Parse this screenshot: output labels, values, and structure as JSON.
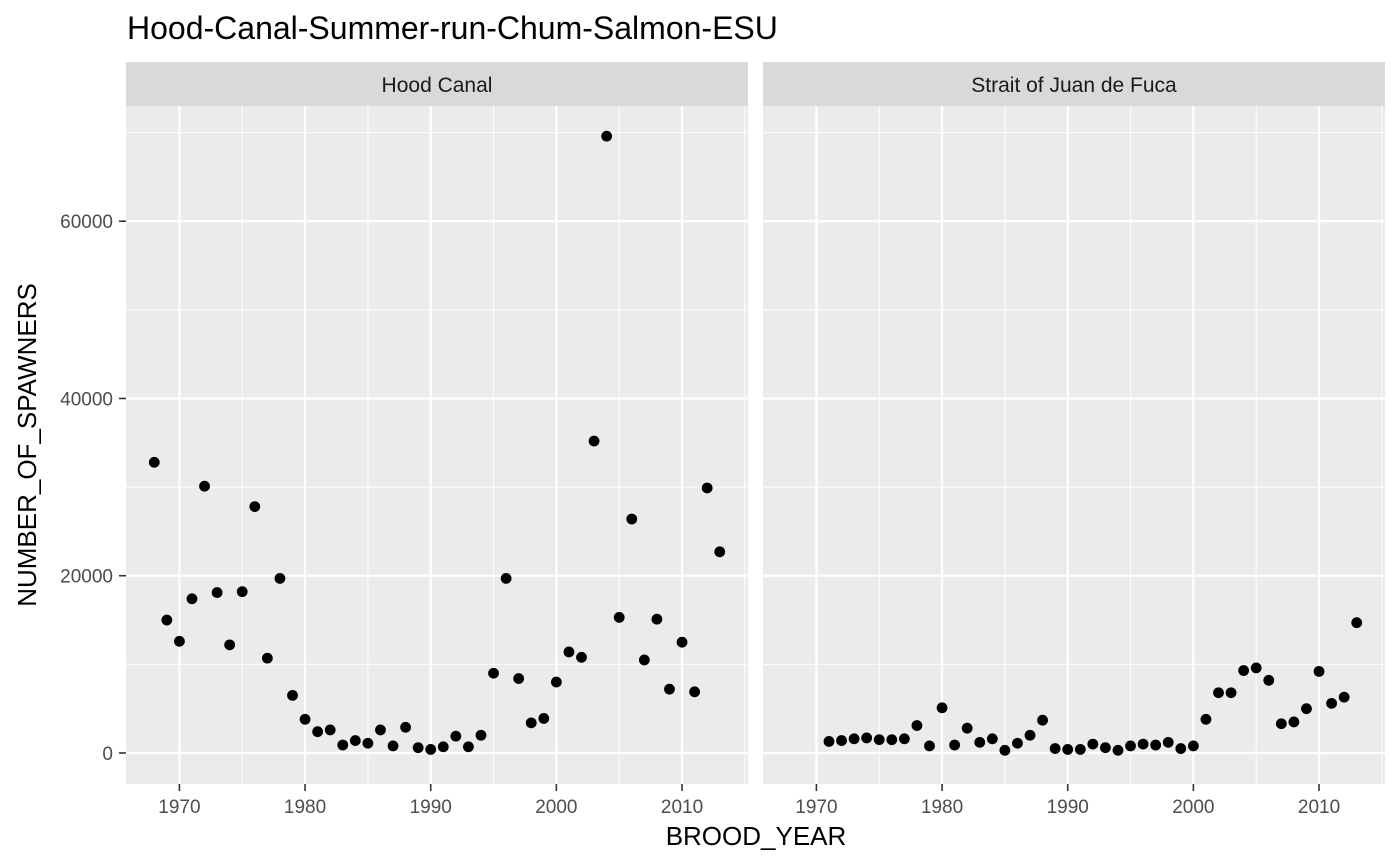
{
  "chart_data": {
    "type": "scatter",
    "title": "Hood-Canal-Summer-run-Chum-Salmon-ESU",
    "xlabel": "BROOD_YEAR",
    "ylabel": "NUMBER_OF_SPAWNERS",
    "xlim": [
      1965.75,
      2015.25
    ],
    "ylim": [
      -3500,
      73000
    ],
    "x_ticks": [
      1970,
      1980,
      1990,
      2000,
      2010
    ],
    "x_tick_labels": [
      "1970",
      "1980",
      "1990",
      "2000",
      "2010"
    ],
    "y_ticks": [
      0,
      20000,
      40000,
      60000
    ],
    "y_tick_labels": [
      "0",
      "20000",
      "40000",
      "60000"
    ],
    "grid": true,
    "colors": {
      "panel_bg": "#ebebeb",
      "strip_bg": "#d9d9d9",
      "grid": "#ffffff",
      "point": "#000000"
    },
    "facets": [
      {
        "label": "Hood Canal",
        "x": [
          1968,
          1969,
          1970,
          1971,
          1972,
          1973,
          1974,
          1975,
          1976,
          1977,
          1978,
          1979,
          1980,
          1981,
          1982,
          1983,
          1984,
          1985,
          1986,
          1987,
          1988,
          1989,
          1990,
          1991,
          1992,
          1993,
          1994,
          1995,
          1996,
          1997,
          1998,
          1999,
          2000,
          2001,
          2002,
          2003,
          2004,
          2005,
          2006,
          2007,
          2008,
          2009,
          2010,
          2011,
          2012,
          2013
        ],
        "y": [
          32800,
          15000,
          12600,
          17400,
          30100,
          18100,
          12200,
          18200,
          27800,
          10700,
          19700,
          6500,
          3800,
          2400,
          2600,
          900,
          1400,
          1100,
          2600,
          800,
          2900,
          600,
          400,
          700,
          1900,
          700,
          2000,
          9000,
          19700,
          8400,
          3400,
          3900,
          8000,
          11400,
          10800,
          35200,
          69600,
          15300,
          26400,
          10500,
          15100,
          7200,
          12500,
          6900,
          29900,
          22700
        ]
      },
      {
        "label": "Strait of Juan de Fuca",
        "x": [
          1971,
          1972,
          1973,
          1974,
          1975,
          1976,
          1977,
          1978,
          1979,
          1980,
          1981,
          1982,
          1983,
          1984,
          1985,
          1986,
          1987,
          1988,
          1989,
          1990,
          1991,
          1992,
          1993,
          1994,
          1995,
          1996,
          1997,
          1998,
          1999,
          2000,
          2001,
          2002,
          2003,
          2004,
          2005,
          2006,
          2007,
          2008,
          2009,
          2010,
          2011,
          2012,
          2013
        ],
        "y": [
          1300,
          1400,
          1600,
          1700,
          1500,
          1500,
          1600,
          3100,
          800,
          5100,
          900,
          2800,
          1200,
          1600,
          300,
          1100,
          2000,
          3700,
          500,
          400,
          400,
          1000,
          600,
          300,
          800,
          1000,
          900,
          1200,
          500,
          800,
          3800,
          6800,
          6800,
          9300,
          9600,
          8200,
          3300,
          3500,
          5000,
          9200,
          5600,
          6300,
          14700
        ]
      }
    ]
  }
}
